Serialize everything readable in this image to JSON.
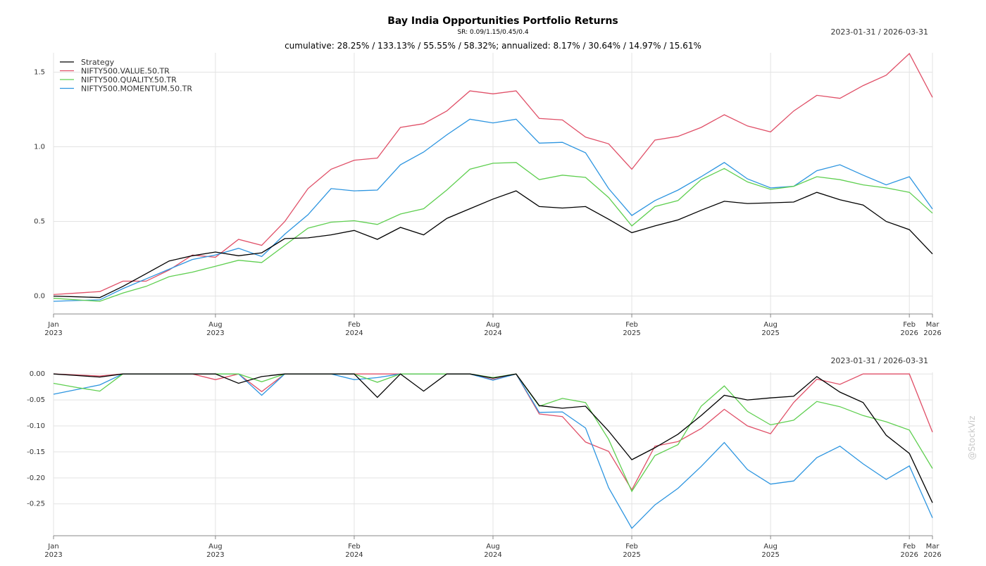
{
  "chart_data": [
    {
      "type": "line",
      "title": "Bay India Opportunities Portfolio Returns",
      "subtitle": "SR: 0.09/1.15/0.45/0.4",
      "annotation": "cumulative: 28.25% / 133.13% / 55.55% / 58.32%; annualized: 8.17% / 30.64% / 14.97% / 15.61%",
      "date_range": "2023-01-31 / 2026-03-31",
      "ylim": [
        -0.12,
        1.63
      ],
      "yticks": [
        "0.0",
        "0.5",
        "1.0",
        "1.5"
      ],
      "ytick_values": [
        0,
        0.5,
        1.0,
        1.5
      ],
      "grid": true,
      "legend_placement": "top-left",
      "xticks": [
        {
          "index": 0,
          "label": [
            "Jan",
            "2023"
          ]
        },
        {
          "index": 7,
          "label": [
            "Aug",
            "2023"
          ]
        },
        {
          "index": 13,
          "label": [
            "Feb",
            "2024"
          ]
        },
        {
          "index": 19,
          "label": [
            "Aug",
            "2024"
          ]
        },
        {
          "index": 25,
          "label": [
            "Feb",
            "2025"
          ]
        },
        {
          "index": 31,
          "label": [
            "Aug",
            "2025"
          ]
        },
        {
          "index": 37,
          "label": [
            "Feb",
            "2026"
          ]
        },
        {
          "index": 38,
          "label": [
            "Mar",
            "2026"
          ]
        }
      ],
      "x_count": 39,
      "series": [
        {
          "name": "Strategy",
          "color": "#000000",
          "values": [
            0,
            -0.005,
            -0.01,
            0.065,
            0.15,
            0.235,
            0.27,
            0.295,
            0.27,
            0.29,
            0.385,
            0.39,
            0.41,
            0.44,
            0.38,
            0.46,
            0.41,
            0.52,
            0.585,
            0.65,
            0.705,
            0.6,
            0.59,
            0.6,
            0.515,
            0.425,
            0.47,
            0.51,
            0.575,
            0.635,
            0.62,
            0.625,
            0.63,
            0.695,
            0.645,
            0.61,
            0.5,
            0.445,
            0.2825
          ]
        },
        {
          "name": "NIFTY500.VALUE.50.TR",
          "color": "#e05068",
          "values": [
            0.01,
            0.02,
            0.03,
            0.1,
            0.1,
            0.175,
            0.275,
            0.26,
            0.38,
            0.34,
            0.5,
            0.72,
            0.85,
            0.91,
            0.925,
            1.13,
            1.155,
            1.24,
            1.375,
            1.355,
            1.375,
            1.19,
            1.18,
            1.065,
            1.02,
            0.85,
            1.045,
            1.07,
            1.13,
            1.215,
            1.14,
            1.1,
            1.24,
            1.345,
            1.325,
            1.41,
            1.48,
            1.625,
            1.3313
          ]
        },
        {
          "name": "NIFTY500.QUALITY.50.TR",
          "color": "#5fcf50",
          "values": [
            -0.015,
            -0.025,
            -0.035,
            0.02,
            0.065,
            0.13,
            0.16,
            0.2,
            0.24,
            0.225,
            0.34,
            0.455,
            0.495,
            0.505,
            0.48,
            0.55,
            0.585,
            0.71,
            0.85,
            0.89,
            0.895,
            0.78,
            0.81,
            0.795,
            0.66,
            0.47,
            0.6,
            0.64,
            0.78,
            0.855,
            0.765,
            0.715,
            0.735,
            0.8,
            0.78,
            0.745,
            0.725,
            0.695,
            0.5555
          ]
        },
        {
          "name": "NIFTY500.MOMENTUM.50.TR",
          "color": "#2d95e0",
          "values": [
            -0.035,
            -0.03,
            -0.025,
            0.05,
            0.115,
            0.18,
            0.245,
            0.275,
            0.32,
            0.265,
            0.415,
            0.545,
            0.72,
            0.705,
            0.71,
            0.88,
            0.965,
            1.08,
            1.185,
            1.16,
            1.185,
            1.025,
            1.03,
            0.96,
            0.72,
            0.54,
            0.64,
            0.71,
            0.8,
            0.895,
            0.785,
            0.725,
            0.735,
            0.84,
            0.88,
            0.81,
            0.745,
            0.8,
            0.5832
          ]
        }
      ]
    },
    {
      "type": "line",
      "title": "",
      "date_range": "2023-01-31 / 2026-03-31",
      "ylim": [
        -0.31,
        0.003
      ],
      "yticks": [
        "0.00",
        "-0.05",
        "-0.10",
        "-0.15",
        "-0.20",
        "-0.25"
      ],
      "ytick_values": [
        0,
        -0.05,
        -0.1,
        -0.15,
        -0.2,
        -0.25
      ],
      "grid": true,
      "x_count": 39,
      "series": [
        {
          "name": "Strategy",
          "color": "#000000",
          "values": [
            0,
            -0.003,
            -0.006,
            0,
            0,
            0,
            0,
            0,
            -0.018,
            -0.005,
            0,
            0,
            0,
            0,
            -0.045,
            0,
            -0.033,
            0,
            0,
            -0.008,
            0,
            -0.061,
            -0.066,
            -0.062,
            -0.11,
            -0.165,
            -0.142,
            -0.116,
            -0.08,
            -0.041,
            -0.05,
            -0.046,
            -0.043,
            -0.005,
            -0.035,
            -0.055,
            -0.118,
            -0.153,
            -0.248
          ]
        },
        {
          "name": "NIFTY500.VALUE.50.TR",
          "color": "#e05068",
          "values": [
            0,
            -0.002,
            -0.004,
            0,
            0,
            0,
            0,
            -0.011,
            0,
            -0.034,
            0,
            0,
            0,
            0,
            0,
            0,
            0,
            0,
            0,
            -0.011,
            0,
            -0.077,
            -0.082,
            -0.131,
            -0.149,
            -0.223,
            -0.139,
            -0.13,
            -0.105,
            -0.068,
            -0.1,
            -0.115,
            -0.055,
            -0.01,
            -0.02,
            0,
            0,
            0,
            -0.112
          ]
        },
        {
          "name": "NIFTY500.QUALITY.50.TR",
          "color": "#5fcf50",
          "values": [
            -0.018,
            -0.026,
            -0.033,
            0,
            0,
            0,
            0,
            0,
            0,
            -0.015,
            0,
            0,
            0,
            0,
            -0.016,
            0,
            0,
            0,
            0,
            -0.007,
            0,
            -0.062,
            -0.047,
            -0.055,
            -0.126,
            -0.226,
            -0.157,
            -0.136,
            -0.062,
            -0.023,
            -0.072,
            -0.098,
            -0.089,
            -0.053,
            -0.063,
            -0.08,
            -0.092,
            -0.108,
            -0.182
          ]
        },
        {
          "name": "NIFTY500.MOMENTUM.50.TR",
          "color": "#2d95e0",
          "values": [
            -0.039,
            -0.03,
            -0.021,
            0,
            0,
            0,
            0,
            0,
            0,
            -0.041,
            0,
            0,
            0,
            -0.011,
            -0.007,
            0,
            0,
            0,
            0,
            -0.012,
            0,
            -0.074,
            -0.073,
            -0.104,
            -0.219,
            -0.297,
            -0.252,
            -0.22,
            -0.178,
            -0.132,
            -0.184,
            -0.212,
            -0.206,
            -0.161,
            -0.139,
            -0.173,
            -0.203,
            -0.177,
            -0.277
          ]
        }
      ]
    }
  ],
  "watermark": "@StockViz"
}
